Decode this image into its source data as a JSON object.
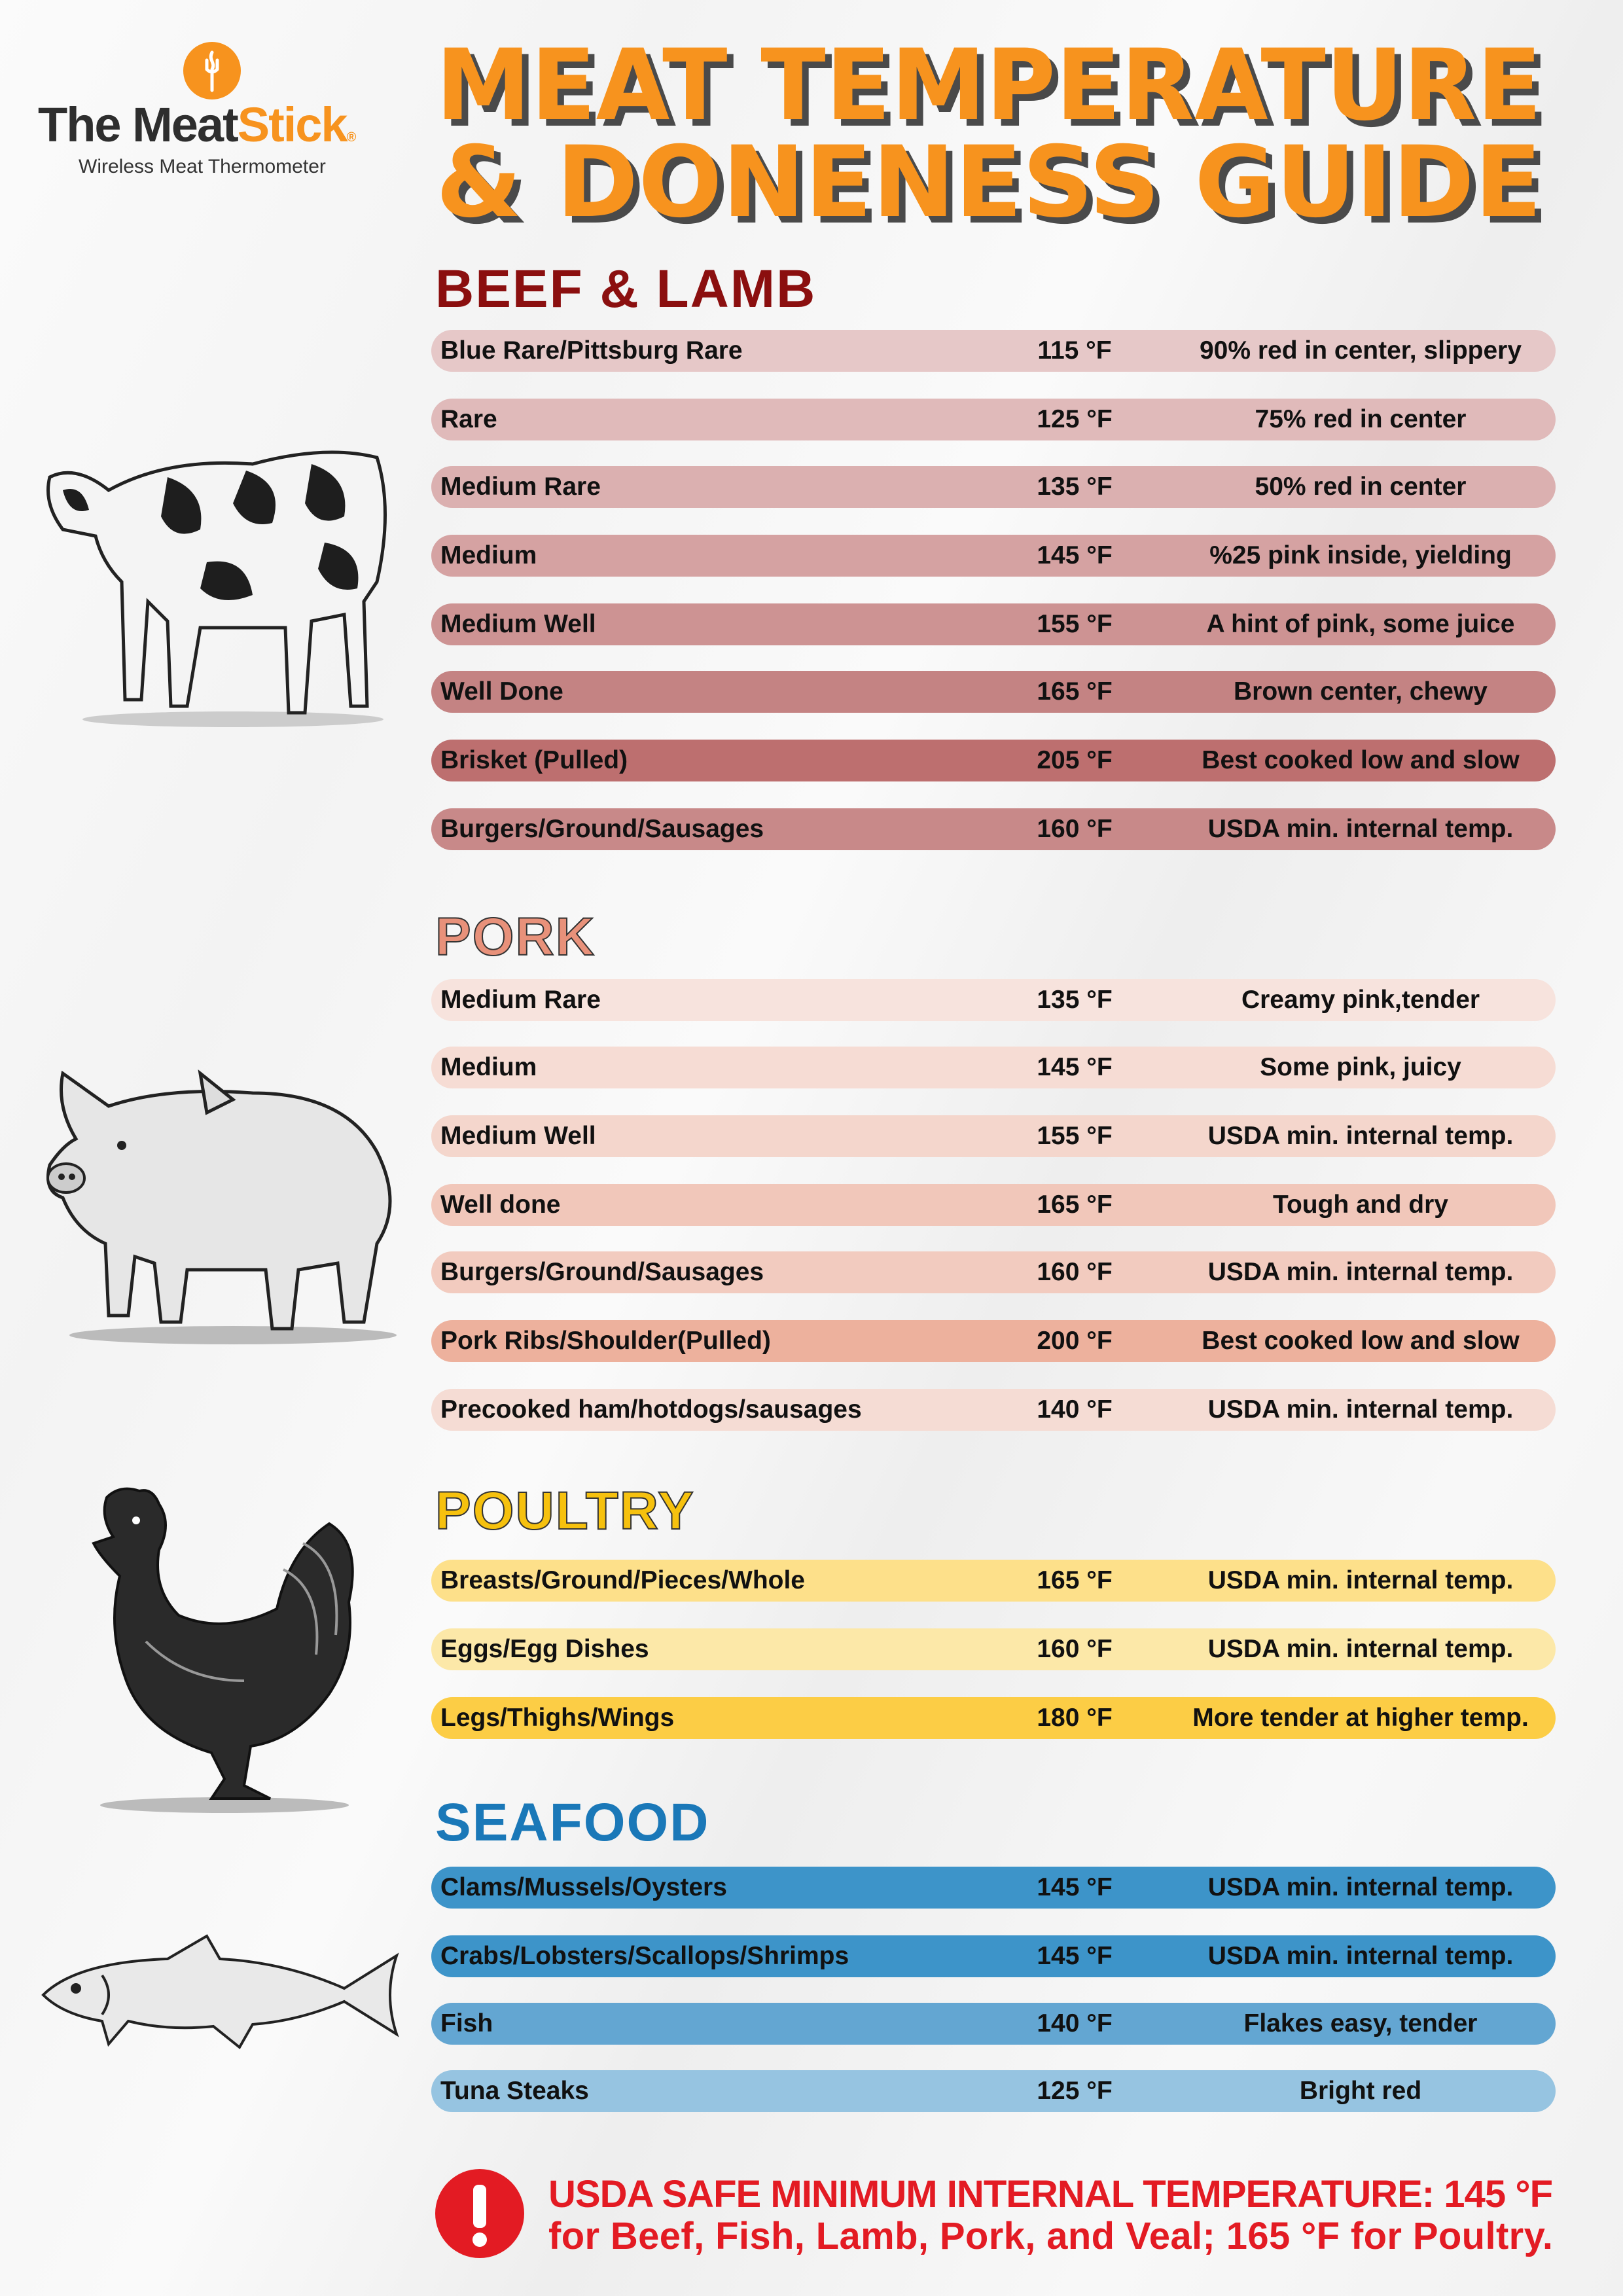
{
  "brand": {
    "name_part1": "The Meat",
    "name_part2": "Stick",
    "registered": "®",
    "tagline": "Wireless Meat Thermometer"
  },
  "title": {
    "line1": "MEAT TEMPERATURE",
    "line2": "& DONENESS GUIDE",
    "color": "#f7931e",
    "shadow_color": "#4a4a4a"
  },
  "sections": [
    {
      "key": "beef",
      "title": "BEEF & LAMB",
      "title_color": "#8b0f0f",
      "icon": "cow-illustration",
      "rows": [
        {
          "label": "Blue Rare/Pittsburg Rare",
          "temp": "115 °F",
          "desc": "90% red in center, slippery",
          "color": "#e6c8c8"
        },
        {
          "label": "Rare",
          "temp": "125 °F",
          "desc": "75% red in center",
          "color": "#e0baba"
        },
        {
          "label": "Medium Rare",
          "temp": "135 °F",
          "desc": "50% red in center",
          "color": "#dbb0b0"
        },
        {
          "label": "Medium",
          "temp": "145 °F",
          "desc": "%25 pink inside, yielding",
          "color": "#d5a2a2"
        },
        {
          "label": "Medium Well",
          "temp": "155 °F",
          "desc": "A hint of pink, some juice",
          "color": "#cd9393"
        },
        {
          "label": "Well Done",
          "temp": "165 °F",
          "desc": "Brown center, chewy",
          "color": "#c48383"
        },
        {
          "label": "Brisket (Pulled)",
          "temp": "205 °F",
          "desc": "Best cooked low and slow",
          "color": "#bd6f6f"
        },
        {
          "label": "Burgers/Ground/Sausages",
          "temp": "160 °F",
          "desc": "USDA min. internal temp.",
          "color": "#c88989"
        }
      ]
    },
    {
      "key": "pork",
      "title": "PORK",
      "title_color": "#e8917a",
      "icon": "pig-illustration",
      "rows": [
        {
          "label": "Medium Rare",
          "temp": "135 °F",
          "desc": "Creamy pink,tender",
          "color": "#f7e3dd"
        },
        {
          "label": "Medium",
          "temp": "145 °F",
          "desc": "Some pink, juicy",
          "color": "#f6dcd4"
        },
        {
          "label": "Medium Well",
          "temp": "155 °F",
          "desc": "USDA min. internal temp.",
          "color": "#f4d6cc"
        },
        {
          "label": "Well done",
          "temp": "165 °F",
          "desc": "Tough and dry",
          "color": "#f1c7ba"
        },
        {
          "label": "Burgers/Ground/Sausages",
          "temp": "160 °F",
          "desc": "USDA min. internal temp.",
          "color": "#f2cbbf"
        },
        {
          "label": "Pork Ribs/Shoulder(Pulled)",
          "temp": "200 °F",
          "desc": "Best cooked low and slow",
          "color": "#edb19d"
        },
        {
          "label": "Precooked ham/hotdogs/sausages",
          "temp": "140 °F",
          "desc": "USDA min. internal temp.",
          "color": "#f5dcd4"
        }
      ]
    },
    {
      "key": "poultry",
      "title": "POULTRY",
      "title_color": "#f6c10e",
      "icon": "rooster-illustration",
      "rows": [
        {
          "label": "Breasts/Ground/Pieces/Whole",
          "temp": "165 °F",
          "desc": "USDA min. internal temp.",
          "color": "#fde08a"
        },
        {
          "label": "Eggs/Egg Dishes",
          "temp": "160 °F",
          "desc": "USDA min. internal temp.",
          "color": "#fce8a8"
        },
        {
          "label": "Legs/Thighs/Wings",
          "temp": "180 °F",
          "desc": "More tender at higher temp.",
          "color": "#fccd45"
        }
      ]
    },
    {
      "key": "seafood",
      "title": "SEAFOOD",
      "title_color": "#1a78b8",
      "icon": "fish-illustration",
      "rows": [
        {
          "label": "Clams/Mussels/Oysters",
          "temp": "145 °F",
          "desc": "USDA min. internal temp.",
          "color": "#3d94c9"
        },
        {
          "label": "Crabs/Lobsters/Scallops/Shrimps",
          "temp": "145 °F",
          "desc": "USDA min. internal temp.",
          "color": "#3d94c9"
        },
        {
          "label": "Fish",
          "temp": "140 °F",
          "desc": "Flakes easy, tender",
          "color": "#63a6d2"
        },
        {
          "label": "Tuna Steaks",
          "temp": "125 °F",
          "desc": "Bright red",
          "color": "#96c4e1"
        }
      ]
    }
  ],
  "footer": {
    "icon": "exclamation-icon",
    "line1": "USDA SAFE MINIMUM INTERNAL TEMPERATURE: 145 °F",
    "line2": "for Beef, Fish, Lamb, Pork, and Veal; 165 °F for Poultry.",
    "color": "#e31b23"
  }
}
